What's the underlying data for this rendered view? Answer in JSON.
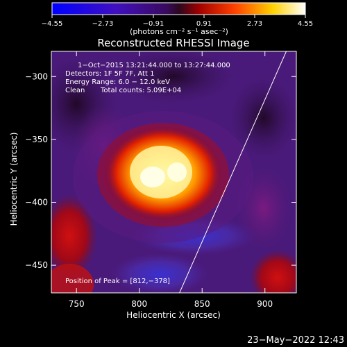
{
  "chart_data": {
    "type": "heatmap",
    "title": "Reconstructed RHESSI Image",
    "xlabel": "Heliocentric X (arcsec)",
    "ylabel": "Heliocentric Y (arcsec)",
    "xlim": [
      730,
      925
    ],
    "ylim": [
      -472,
      -280
    ],
    "x_ticks": [
      750,
      800,
      850,
      900
    ],
    "x_tick_labels": [
      "750",
      "800",
      "850",
      "900"
    ],
    "y_ticks": [
      -300,
      -350,
      -400,
      -450
    ],
    "y_tick_labels": [
      "−300",
      "−350",
      "−400",
      "−450"
    ],
    "colorbar": {
      "colormap": "blue-purple-red-yellow-white",
      "range": [
        -4.55,
        4.55
      ],
      "ticks": [
        -4.55,
        -2.73,
        -0.91,
        0.91,
        2.73,
        4.55
      ],
      "tick_labels": [
        "−4.55",
        "−2.73",
        "−0.91",
        "0.91",
        "2.73",
        "4.55"
      ],
      "units_label": "(photons cm⁻² s⁻¹ asec⁻²)"
    },
    "annotations": [
      "1−Oct−2015 13:21:44.000 to 13:27:44.000",
      "Detectors: 1F 5F 7F, Att 1",
      "Energy Range: 6.0 − 12.0 keV",
      "Clean",
      "Total counts: 5.09E+04",
      "Position of Peak = [812,−378]"
    ],
    "peak": {
      "x": 812,
      "y": -378
    },
    "limb_line": [
      [
        832,
        -472
      ],
      [
        917,
        -280
      ]
    ]
  },
  "footer_date": "23−May−2022 12:43"
}
